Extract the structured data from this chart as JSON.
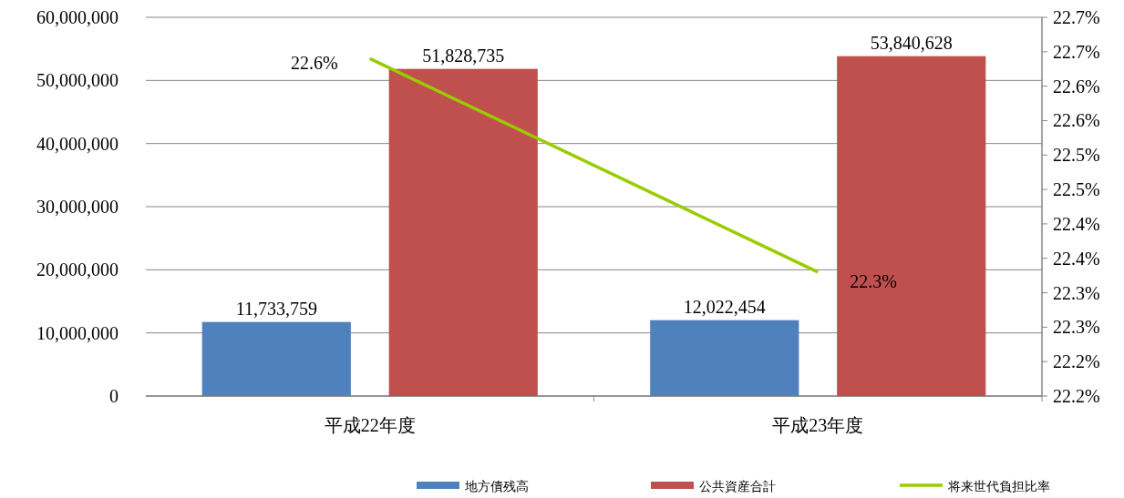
{
  "chart_data": {
    "type": "bar",
    "categories": [
      "平成22年度",
      "平成23年度"
    ],
    "series": [
      {
        "name": "地方債残高",
        "color": "#4f81bd",
        "values": [
          11733759,
          12022454
        ],
        "value_labels": [
          "11,733,759",
          "12,022,454"
        ]
      },
      {
        "name": "公共資産合計",
        "color": "#c0504d",
        "values": [
          51828735,
          53840628
        ],
        "value_labels": [
          "51,828,735",
          "53,840,628"
        ]
      },
      {
        "name": "将来世代負担比率",
        "type": "line",
        "axis": "y2",
        "color": "#99cc00",
        "values": [
          22.64,
          22.33
        ],
        "value_labels": [
          "22.6%",
          "22.3%"
        ]
      }
    ],
    "ylim": [
      0,
      60000000
    ],
    "yticks": [
      0,
      {
        "value": 10000000,
        "label": "10,000,000"
      },
      {
        "value": 20000000,
        "label": "20,000,000"
      },
      {
        "value": 30000000,
        "label": "30,000,000"
      },
      {
        "value": 40000000,
        "label": "40,000,000"
      },
      {
        "value": 50000000,
        "label": "50,000,000"
      },
      {
        "value": 60000000,
        "label": "60,000,000"
      }
    ],
    "y2lim": [
      22.15,
      22.7
    ],
    "y2ticks": [
      {
        "value": 22.15,
        "label": "22.2%"
      },
      {
        "value": 22.2,
        "label": "22.2%"
      },
      {
        "value": 22.25,
        "label": "22.3%"
      },
      {
        "value": 22.3,
        "label": "22.3%"
      },
      {
        "value": 22.35,
        "label": "22.4%"
      },
      {
        "value": 22.4,
        "label": "22.4%"
      },
      {
        "value": 22.45,
        "label": "22.5%"
      },
      {
        "value": 22.5,
        "label": "22.5%"
      },
      {
        "value": 22.55,
        "label": "22.6%"
      },
      {
        "value": 22.6,
        "label": "22.6%"
      },
      {
        "value": 22.65,
        "label": "22.7%"
      },
      {
        "value": 22.7,
        "label": "22.7%"
      }
    ],
    "grid": "y",
    "legend": "bottom",
    "marker": "none",
    "line_style": "solid"
  }
}
